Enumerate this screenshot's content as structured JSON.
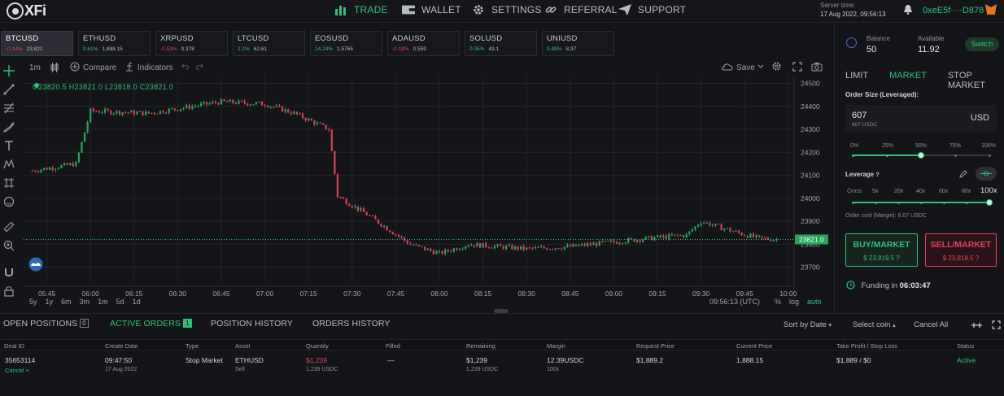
{
  "brand": {
    "name": "XFi"
  },
  "nav": [
    {
      "label": "TRADE",
      "icon": "bar-chart-icon",
      "active": true
    },
    {
      "label": "WALLET",
      "icon": "wallet-icon",
      "active": false
    },
    {
      "label": "SETTINGS",
      "icon": "gear-icon",
      "active": false
    },
    {
      "label": "REFERRAL",
      "icon": "link-icon",
      "active": false
    },
    {
      "label": "SUPPORT",
      "icon": "send-icon",
      "active": false
    }
  ],
  "server": {
    "label": "Server time:",
    "time": "17 Aug 2022, 09:56:13"
  },
  "wallet_address": "0xeE5f····D878",
  "tickers": [
    {
      "symbol": "BTCUSD",
      "change": "-0.14%",
      "price": "23,821",
      "dir": "dn",
      "active": true
    },
    {
      "symbol": "ETHUSD",
      "change": "0.61%",
      "price": "1,888.15",
      "dir": "up",
      "active": false
    },
    {
      "symbol": "XRPUSD",
      "change": "-0.53%",
      "price": "0.378",
      "dir": "dn",
      "active": false
    },
    {
      "symbol": "LTCUSD",
      "change": "2.1%",
      "price": "62.61",
      "dir": "up",
      "active": false
    },
    {
      "symbol": "EOSUSD",
      "change": "14.24%",
      "price": "1.5765",
      "dir": "up",
      "active": false
    },
    {
      "symbol": "ADAUSD",
      "change": "-0.18%",
      "price": "0.559",
      "dir": "dn",
      "active": false
    },
    {
      "symbol": "SOLUSD",
      "change": "0.05%",
      "price": "43.1",
      "dir": "up",
      "active": false
    },
    {
      "symbol": "UNIUSD",
      "change": "0.48%",
      "price": "8.37",
      "dir": "up",
      "active": false
    }
  ],
  "chart_toolbar": {
    "interval": "1m",
    "compare": "Compare",
    "indicators": "Indicators",
    "save": "Save"
  },
  "ohlc": "O23820.5 H23821.0 L23818.0 C23821.0",
  "timeframes": [
    "5y",
    "1y",
    "6m",
    "3m",
    "1m",
    "5d",
    "1d"
  ],
  "chart_clock": "09:56:13 (UTC)",
  "scale_options": {
    "pct": "%",
    "log": "log",
    "auto": "auto"
  },
  "chart_data": {
    "type": "candlestick",
    "x_ticks": [
      "05:45",
      "06:00",
      "06:15",
      "06:30",
      "06:45",
      "07:00",
      "07:15",
      "07:30",
      "07:45",
      "08:00",
      "08:15",
      "08:30",
      "08:45",
      "09:00",
      "09:15",
      "09:30",
      "09:45",
      "10:00"
    ],
    "y_ticks": [
      24500,
      24400,
      24300,
      24200,
      24100,
      24000,
      23900,
      23800,
      23700
    ],
    "ylim": [
      23660,
      24530
    ],
    "last_price": "23821.0",
    "series": [
      {
        "time": "05:40",
        "close": 24120
      },
      {
        "time": "05:55",
        "close": 24150
      },
      {
        "time": "06:00",
        "close": 24380
      },
      {
        "time": "06:20",
        "close": 24370
      },
      {
        "time": "06:45",
        "close": 24420
      },
      {
        "time": "07:00",
        "close": 24410
      },
      {
        "time": "07:10",
        "close": 24370
      },
      {
        "time": "07:22",
        "close": 24300
      },
      {
        "time": "07:25",
        "close": 24010
      },
      {
        "time": "07:35",
        "close": 23930
      },
      {
        "time": "07:50",
        "close": 23800
      },
      {
        "time": "08:00",
        "close": 23760
      },
      {
        "time": "08:10",
        "close": 23800
      },
      {
        "time": "08:30",
        "close": 23780
      },
      {
        "time": "08:45",
        "close": 23790
      },
      {
        "time": "09:00",
        "close": 23810
      },
      {
        "time": "09:15",
        "close": 23830
      },
      {
        "time": "09:25",
        "close": 23840
      },
      {
        "time": "09:30",
        "close": 23900
      },
      {
        "time": "09:40",
        "close": 23860
      },
      {
        "time": "09:50",
        "close": 23825
      },
      {
        "time": "09:56",
        "close": 23821
      }
    ]
  },
  "balance": {
    "label": "Balance",
    "value": "50",
    "available_label": "Available",
    "available_value": "11.92",
    "switch": "Switch"
  },
  "order_tabs": [
    "LIMIT",
    "MARKET",
    "STOP MARKET"
  ],
  "order_size": {
    "label": "Order Size (Leveraged):",
    "value": "607",
    "sub": "607 USDC",
    "currency": "USD"
  },
  "size_percents": [
    "0%",
    "25%",
    "50%",
    "75%",
    "100%"
  ],
  "size_level": 0.5,
  "leverage": {
    "label": "Leverage",
    "help": "?",
    "marks": [
      "Cross",
      "5x",
      "20x",
      "40x",
      "60x",
      "80x"
    ],
    "value": "100x",
    "level": 1.0
  },
  "order_cost": "Order cost (Margin): 6.07 USDC",
  "buy": {
    "label": "BUY/MARKET",
    "price": "$ 23,819.5",
    "help": "?"
  },
  "sell": {
    "label": "SELL/MARKET",
    "price": "$ 23,818.5",
    "help": "?"
  },
  "funding": {
    "label": "Funding in",
    "value": "06:03:47"
  },
  "order_tabs_bottom": [
    {
      "label": "OPEN POSITIONS",
      "count": "0",
      "active": false
    },
    {
      "label": "ACTIVE ORDERS",
      "count": "1",
      "active": true
    },
    {
      "label": "POSITION HISTORY",
      "count": "",
      "active": false
    },
    {
      "label": "ORDERS HISTORY",
      "count": "",
      "active": false
    }
  ],
  "order_controls": {
    "sort": "Sort by Date",
    "select": "Select coin",
    "cancel_all": "Cancel All"
  },
  "columns": [
    "Deal ID",
    "Create Date",
    "Type",
    "Asset",
    "Quantity",
    "Filled",
    "Remaining",
    "Margin",
    "Request Price",
    "Current Price",
    "Take Profit / Stop Loss",
    "Status"
  ],
  "orders": [
    {
      "deal_id": "35653114",
      "cancel": "Cancel",
      "time": "09:47:50",
      "date": "17 Aug 2022",
      "type": "Stop Market",
      "asset": "ETHUSD",
      "side": "Sell",
      "quantity": "$1,239",
      "quantity_sub": "1,239 USDC",
      "filled": "—",
      "remaining": "$1,239",
      "remaining_sub": "1,239 USDC",
      "margin": "12.39USDC",
      "margin_sub": "100x",
      "request_price": "$1,889.2",
      "current_price": "1,888.15",
      "tpsl": "$1,889 / $0",
      "status": "Active"
    }
  ]
}
